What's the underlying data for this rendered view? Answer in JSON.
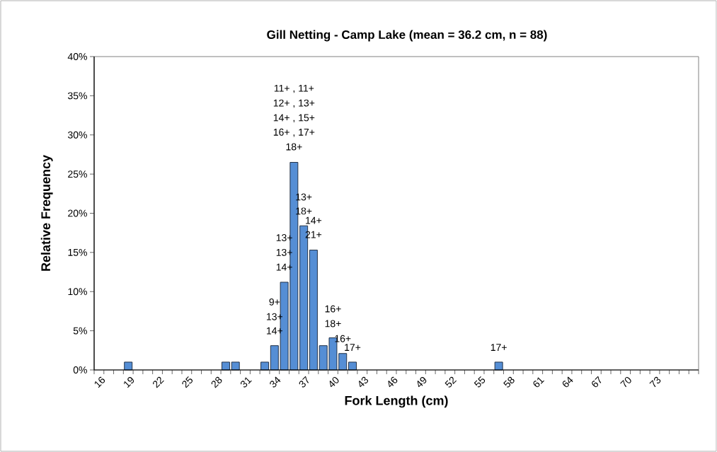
{
  "chart_data": {
    "type": "bar",
    "title": "Gill Netting - Camp Lake (mean =  36.2 cm, n = 88)",
    "xlabel": "Fork Length (cm)",
    "ylabel": "Relative Frequency",
    "categories": [
      "16",
      null,
      null,
      "19",
      null,
      null,
      "22",
      null,
      null,
      "25",
      null,
      null,
      "28",
      null,
      null,
      "31",
      null,
      null,
      "34",
      null,
      null,
      "37",
      null,
      null,
      "40",
      null,
      null,
      "43",
      null,
      null,
      "46",
      null,
      null,
      "49",
      null,
      null,
      "52",
      null,
      null,
      "55",
      null,
      null,
      "58",
      null,
      null,
      "61",
      null,
      null,
      "64",
      null,
      null,
      "67",
      null,
      null,
      "70",
      null,
      null,
      "73",
      null,
      null,
      null,
      null
    ],
    "values": [
      0,
      0,
      0,
      1.0,
      0,
      0,
      0,
      0,
      0,
      0,
      0,
      0,
      0,
      1.0,
      1.0,
      0,
      0,
      1.0,
      3.1,
      11.2,
      26.5,
      18.4,
      15.3,
      3.1,
      4.1,
      2.1,
      1.0,
      0,
      0,
      0,
      0,
      0,
      0,
      0,
      0,
      0,
      0,
      0,
      0,
      0,
      0,
      1.0,
      0,
      0,
      0,
      0,
      0,
      0,
      0,
      0,
      0,
      0,
      0,
      0,
      0,
      0,
      0,
      0,
      0,
      0,
      0,
      0
    ],
    "color": "#558ed5",
    "ylim": [
      0,
      40
    ],
    "yticks": [
      {
        "value": 0,
        "label": "0%"
      },
      {
        "value": 5,
        "label": "5%"
      },
      {
        "value": 10,
        "label": "10%"
      },
      {
        "value": 15,
        "label": "15%"
      },
      {
        "value": 20,
        "label": "20%"
      },
      {
        "value": 25,
        "label": "25%"
      },
      {
        "value": 30,
        "label": "30%"
      },
      {
        "value": 35,
        "label": "35%"
      },
      {
        "value": 40,
        "label": "40%"
      }
    ],
    "annotations": [
      "11+ , 11+",
      "12+ , 13+",
      "14+ , 15+",
      "16+ , 17+",
      "18+",
      "13+",
      "18+",
      "14+",
      "21+",
      "13+",
      "13+",
      "14+",
      "9+",
      "13+",
      "14+",
      "16+",
      "18+",
      "16+",
      "17+",
      "17+"
    ]
  }
}
